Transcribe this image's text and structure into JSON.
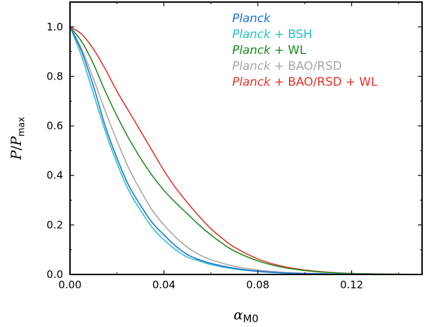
{
  "chart_data": {
    "type": "line",
    "xlabel_base": "α",
    "xlabel_sub": "M0",
    "ylabel_p": "P",
    "ylabel_sep": "/",
    "ylabel_pmax": "P",
    "ylabel_sub": "max",
    "xlim": [
      0,
      0.15
    ],
    "ylim": [
      0,
      1.1
    ],
    "xticks": [
      {
        "value": 0.0,
        "label": "0.00"
      },
      {
        "value": 0.04,
        "label": "0.04"
      },
      {
        "value": 0.08,
        "label": "0.08"
      },
      {
        "value": 0.12,
        "label": "0.12"
      }
    ],
    "yticks": [
      {
        "value": 0.0,
        "label": "0.0"
      },
      {
        "value": 0.2,
        "label": "0.2"
      },
      {
        "value": 0.4,
        "label": "0.4"
      },
      {
        "value": 0.6,
        "label": "0.6"
      },
      {
        "value": 0.8,
        "label": "0.8"
      },
      {
        "value": 1.0,
        "label": "1.0"
      }
    ],
    "legend_position": "top-right",
    "series": [
      {
        "name_italic": "Planck",
        "name_rest": "",
        "color": "#1f6fd6",
        "x": [
          0,
          0.005,
          0.01,
          0.015,
          0.02,
          0.025,
          0.03,
          0.035,
          0.04,
          0.045,
          0.05,
          0.055,
          0.06,
          0.07,
          0.08,
          0.09,
          0.1,
          0.11,
          0.12,
          0.13,
          0.14,
          0.15
        ],
        "y": [
          1.0,
          0.9,
          0.76,
          0.6,
          0.47,
          0.36,
          0.28,
          0.21,
          0.16,
          0.115,
          0.08,
          0.06,
          0.045,
          0.025,
          0.013,
          0.007,
          0.004,
          0.002,
          0.001,
          0.0005,
          0.0002,
          0.0
        ]
      },
      {
        "name_italic": "Planck",
        "name_rest": " + BSH",
        "color": "#26c2c2",
        "x": [
          0,
          0.005,
          0.01,
          0.015,
          0.02,
          0.025,
          0.03,
          0.035,
          0.04,
          0.045,
          0.05,
          0.055,
          0.06,
          0.07,
          0.08,
          0.09,
          0.1,
          0.11,
          0.12,
          0.13,
          0.14,
          0.15
        ],
        "y": [
          1.0,
          0.88,
          0.73,
          0.58,
          0.45,
          0.34,
          0.26,
          0.19,
          0.14,
          0.1,
          0.07,
          0.055,
          0.04,
          0.022,
          0.012,
          0.006,
          0.003,
          0.0015,
          0.0008,
          0.0004,
          0.0002,
          0.0
        ]
      },
      {
        "name_italic": "Planck",
        "name_rest": " + WL",
        "color": "#1e8a1e",
        "x": [
          0,
          0.005,
          0.01,
          0.015,
          0.02,
          0.025,
          0.03,
          0.035,
          0.04,
          0.045,
          0.05,
          0.055,
          0.06,
          0.065,
          0.07,
          0.08,
          0.09,
          0.1,
          0.11,
          0.12,
          0.13,
          0.14,
          0.15
        ],
        "y": [
          1.0,
          0.94,
          0.85,
          0.74,
          0.64,
          0.55,
          0.47,
          0.4,
          0.34,
          0.29,
          0.245,
          0.2,
          0.16,
          0.125,
          0.095,
          0.055,
          0.03,
          0.016,
          0.008,
          0.004,
          0.002,
          0.001,
          0.0
        ]
      },
      {
        "name_italic": "Planck",
        "name_rest": " + BAO/RSD",
        "color": "#a6a6a6",
        "x": [
          0,
          0.005,
          0.01,
          0.015,
          0.02,
          0.025,
          0.03,
          0.035,
          0.04,
          0.045,
          0.05,
          0.055,
          0.06,
          0.07,
          0.08,
          0.09,
          0.1,
          0.11,
          0.12,
          0.13,
          0.14,
          0.15
        ],
        "y": [
          1.0,
          0.91,
          0.79,
          0.66,
          0.54,
          0.43,
          0.34,
          0.26,
          0.2,
          0.15,
          0.11,
          0.08,
          0.06,
          0.033,
          0.018,
          0.009,
          0.005,
          0.0025,
          0.0012,
          0.0006,
          0.0003,
          0.0
        ]
      },
      {
        "name_italic": "Planck",
        "name_rest": " + BAO/RSD + WL",
        "color": "#e0342a",
        "x": [
          0,
          0.005,
          0.01,
          0.015,
          0.02,
          0.025,
          0.03,
          0.035,
          0.04,
          0.045,
          0.05,
          0.055,
          0.06,
          0.065,
          0.07,
          0.08,
          0.09,
          0.1,
          0.11,
          0.12,
          0.13,
          0.14,
          0.15
        ],
        "y": [
          1.0,
          0.97,
          0.91,
          0.83,
          0.74,
          0.66,
          0.58,
          0.5,
          0.42,
          0.35,
          0.29,
          0.235,
          0.185,
          0.145,
          0.11,
          0.063,
          0.034,
          0.018,
          0.009,
          0.004,
          0.002,
          0.001,
          0.0
        ]
      }
    ]
  }
}
